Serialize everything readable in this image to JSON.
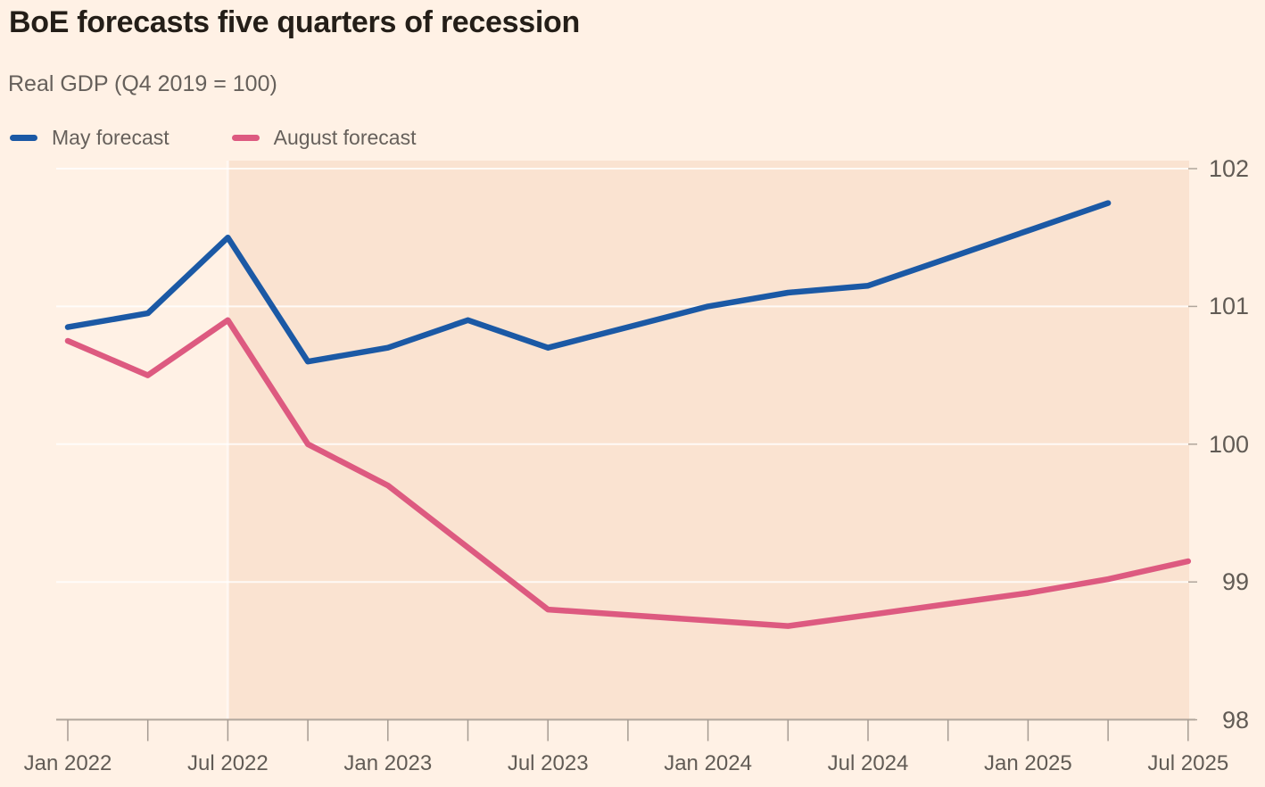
{
  "chart_data": {
    "type": "line",
    "title": "BoE forecasts five quarters of recession",
    "subtitle": "Real GDP (Q4 2019 = 100)",
    "categories": [
      "Jan 2022",
      "Apr 2022",
      "Jul 2022",
      "Oct 2022",
      "Jan 2023",
      "Apr 2023",
      "Jul 2023",
      "Oct 2023",
      "Jan 2024",
      "Apr 2024",
      "Jul 2024",
      "Oct 2024",
      "Jan 2025",
      "Apr 2025",
      "Jul 2025"
    ],
    "series": [
      {
        "name": "May forecast",
        "color": "#1b59a5",
        "values": [
          100.85,
          100.95,
          101.5,
          100.6,
          100.7,
          100.9,
          100.7,
          100.85,
          101.0,
          101.1,
          101.15,
          101.35,
          101.55,
          101.75
        ]
      },
      {
        "name": "August forecast",
        "color": "#dd5a80",
        "values": [
          100.75,
          100.5,
          100.9,
          100.0,
          99.7,
          99.25,
          98.8,
          98.76,
          98.72,
          98.68,
          98.76,
          98.84,
          98.92,
          99.02,
          99.15
        ]
      }
    ],
    "xlabel": "",
    "ylabel": "",
    "ylim": [
      98,
      102
    ],
    "y_ticks": [
      102,
      101,
      100,
      99,
      98
    ],
    "x_tick_labels": [
      "Jan 2022",
      "Jul 2022",
      "Jan 2023",
      "Jul 2023",
      "Jan 2024",
      "Jul 2024",
      "Jan 2025",
      "Jul 2025"
    ],
    "grid": "horizontal faint gridlines",
    "legend_position": "top-left",
    "y_axis_side": "right",
    "shaded_region": {
      "from_category": "Jul 2022",
      "color": "#fae3d1"
    }
  },
  "colors": {
    "background": "#fff1e5",
    "shaded_band": "#fae3d1",
    "may_line": "#1b59a5",
    "august_line": "#dd5a80",
    "title_text": "#241e18",
    "secondary_text": "#66605b",
    "axis_line": "#b0a69c",
    "tick": "#a59b92",
    "gridline": "rgba(255,255,255,0.8)"
  }
}
